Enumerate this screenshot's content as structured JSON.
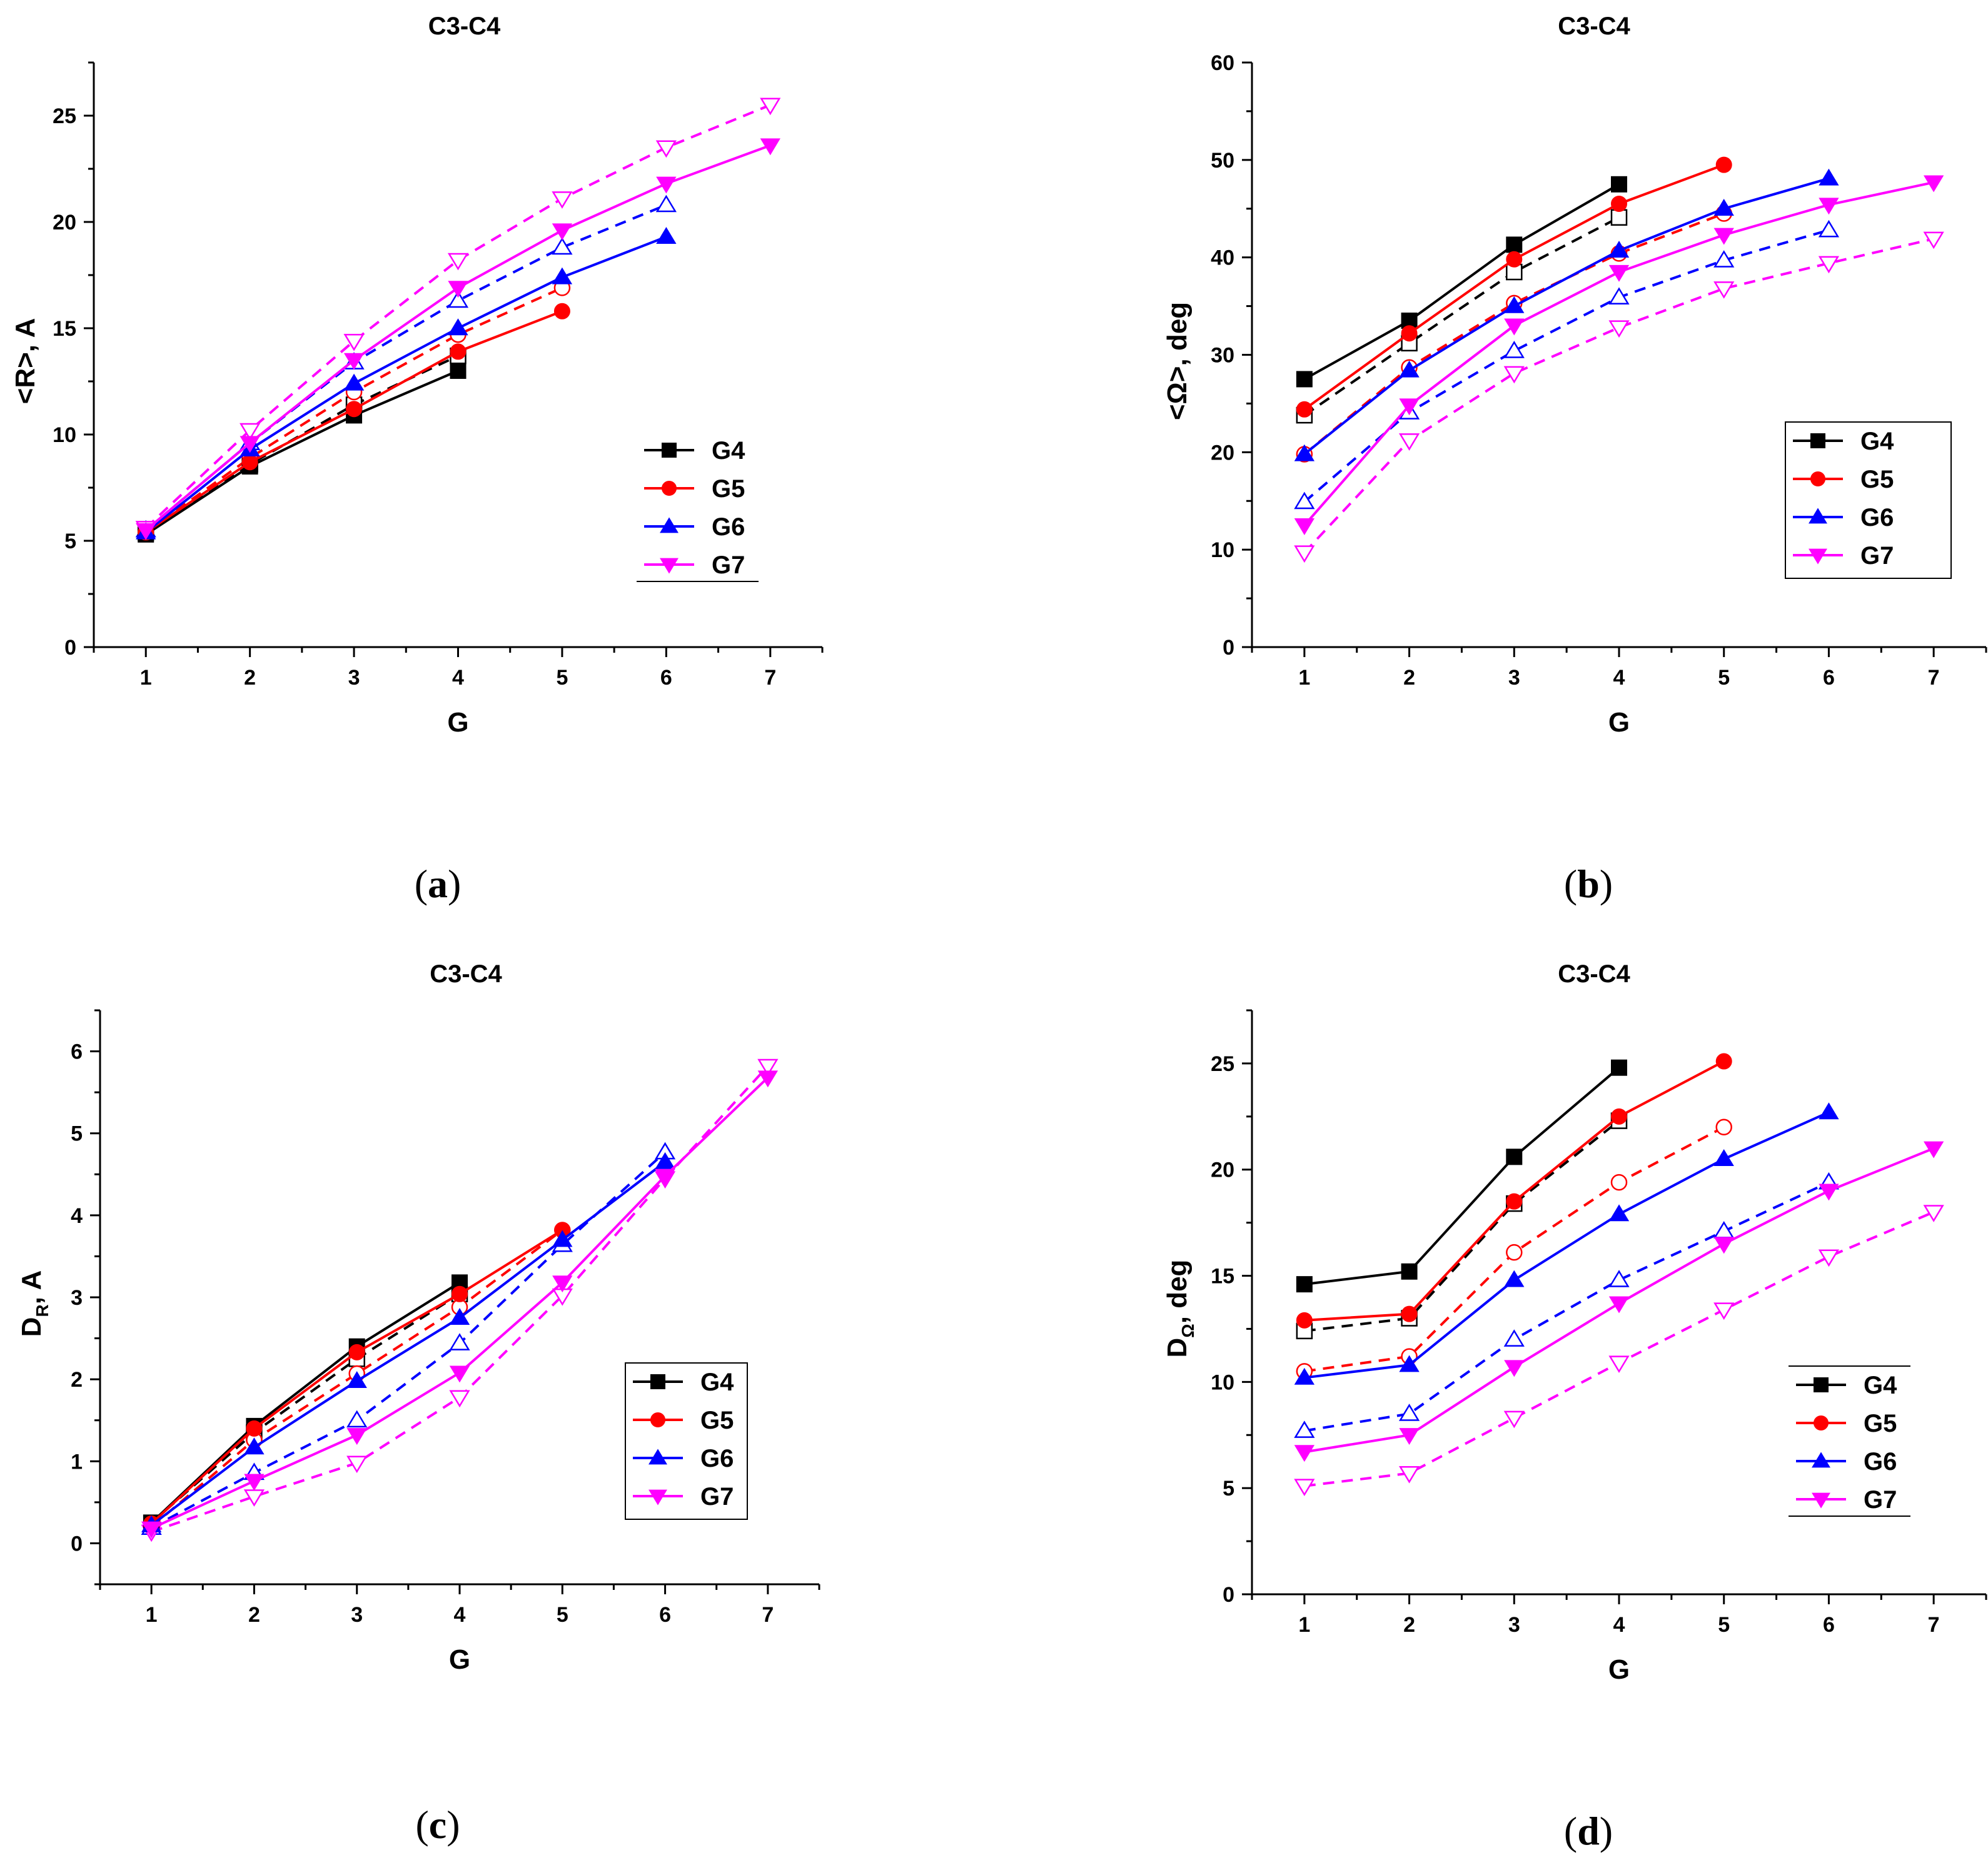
{
  "figure": {
    "panel_labels": [
      {
        "open": "(",
        "letter": "a",
        "close": ")"
      },
      {
        "open": "(",
        "letter": "b",
        "close": ")"
      },
      {
        "open": "(",
        "letter": "c",
        "close": ")"
      },
      {
        "open": "(",
        "letter": "d",
        "close": ")"
      }
    ]
  },
  "chart_data": [
    {
      "id": "a",
      "type": "line",
      "title": "C3-C4",
      "xlabel": "G",
      "ylabel": "<R>, A",
      "xlim": [
        0.5,
        7.5
      ],
      "ylim": [
        0,
        27.5
      ],
      "xticks": [
        1,
        2,
        3,
        4,
        5,
        6,
        7
      ],
      "yticks": [
        0,
        5,
        10,
        15,
        20,
        25
      ],
      "grid": false,
      "legend_position": "lower-right",
      "legend": [
        "G4",
        "G5",
        "G6",
        "G7"
      ],
      "series": [
        {
          "name": "G4",
          "color": "#000000",
          "style": "solid",
          "marker": "square",
          "filled": true,
          "x": [
            1,
            2,
            3,
            4
          ],
          "values": [
            5.3,
            8.5,
            10.9,
            13.0
          ]
        },
        {
          "name": "G5",
          "color": "#ff0000",
          "style": "solid",
          "marker": "circle",
          "filled": true,
          "x": [
            1,
            2,
            3,
            4,
            5
          ],
          "values": [
            5.4,
            8.7,
            11.2,
            13.9,
            15.8
          ]
        },
        {
          "name": "G6",
          "color": "#0000ff",
          "style": "solid",
          "marker": "triangle-up",
          "filled": true,
          "x": [
            1,
            2,
            3,
            4,
            5,
            6
          ],
          "values": [
            5.4,
            9.3,
            12.4,
            15.0,
            17.4,
            19.3
          ]
        },
        {
          "name": "G7",
          "color": "#ff00ff",
          "style": "solid",
          "marker": "triangle-down",
          "filled": true,
          "x": [
            1,
            2,
            3,
            4,
            5,
            6,
            7
          ],
          "values": [
            5.5,
            9.6,
            13.5,
            16.9,
            19.6,
            21.8,
            23.6
          ]
        },
        {
          "name": "G4 open",
          "color": "#000000",
          "style": "dashed",
          "marker": "square",
          "filled": false,
          "x": [
            1,
            2,
            3,
            4
          ],
          "values": [
            5.4,
            8.6,
            11.4,
            13.7
          ]
        },
        {
          "name": "G5 open",
          "color": "#ff0000",
          "style": "dashed",
          "marker": "circle",
          "filled": false,
          "x": [
            1,
            2,
            3,
            4,
            5
          ],
          "values": [
            5.4,
            8.9,
            12.0,
            14.7,
            16.9
          ]
        },
        {
          "name": "G6 open",
          "color": "#0000ff",
          "style": "dashed",
          "marker": "triangle-up",
          "filled": false,
          "x": [
            1,
            2,
            3,
            4,
            5,
            6
          ],
          "values": [
            5.5,
            9.6,
            13.4,
            16.3,
            18.8,
            20.8
          ]
        },
        {
          "name": "G7 open",
          "color": "#ff00ff",
          "style": "dashed",
          "marker": "triangle-down",
          "filled": false,
          "x": [
            1,
            2,
            3,
            4,
            5,
            6,
            7
          ],
          "values": [
            5.6,
            10.2,
            14.4,
            18.2,
            21.1,
            23.5,
            25.5
          ]
        }
      ]
    },
    {
      "id": "b",
      "type": "line",
      "title": "C3-C4",
      "xlabel": "G",
      "ylabel": "<Ω>, deg",
      "xlim": [
        0.5,
        7.5
      ],
      "ylim": [
        0,
        60
      ],
      "xticks": [
        1,
        2,
        3,
        4,
        5,
        6,
        7
      ],
      "yticks": [
        0,
        10,
        20,
        30,
        40,
        50,
        60
      ],
      "grid": false,
      "legend_position": "right",
      "legend": [
        "G4",
        "G5",
        "G6",
        "G7"
      ],
      "series": [
        {
          "name": "G4",
          "color": "#000000",
          "style": "solid",
          "marker": "square",
          "filled": true,
          "x": [
            1,
            2,
            3,
            4
          ],
          "values": [
            27.5,
            33.5,
            41.3,
            47.5
          ]
        },
        {
          "name": "G5",
          "color": "#ff0000",
          "style": "solid",
          "marker": "circle",
          "filled": true,
          "x": [
            1,
            2,
            3,
            4,
            5
          ],
          "values": [
            24.4,
            32.2,
            39.8,
            45.5,
            49.5
          ]
        },
        {
          "name": "G6",
          "color": "#0000ff",
          "style": "solid",
          "marker": "triangle-up",
          "filled": true,
          "x": [
            1,
            2,
            3,
            4,
            5,
            6
          ],
          "values": [
            19.8,
            28.4,
            35.0,
            40.7,
            45.0,
            48.1
          ]
        },
        {
          "name": "G7",
          "color": "#ff00ff",
          "style": "solid",
          "marker": "triangle-down",
          "filled": true,
          "x": [
            1,
            2,
            3,
            4,
            5,
            6,
            7
          ],
          "values": [
            12.5,
            24.8,
            33.0,
            38.5,
            42.3,
            45.4,
            47.7
          ]
        },
        {
          "name": "G4 open",
          "color": "#000000",
          "style": "dashed",
          "marker": "square",
          "filled": false,
          "x": [
            1,
            2,
            3,
            4
          ],
          "values": [
            23.8,
            31.2,
            38.5,
            44.1
          ]
        },
        {
          "name": "G5 open",
          "color": "#ff0000",
          "style": "dashed",
          "marker": "circle",
          "filled": false,
          "x": [
            1,
            2,
            3,
            4,
            5
          ],
          "values": [
            19.8,
            28.7,
            35.3,
            40.4,
            44.5
          ]
        },
        {
          "name": "G6 open",
          "color": "#0000ff",
          "style": "dashed",
          "marker": "triangle-up",
          "filled": false,
          "x": [
            1,
            2,
            3,
            4,
            5,
            6
          ],
          "values": [
            14.9,
            24.1,
            30.4,
            35.9,
            39.7,
            42.8
          ]
        },
        {
          "name": "G7 open",
          "color": "#ff00ff",
          "style": "dashed",
          "marker": "triangle-down",
          "filled": false,
          "x": [
            1,
            2,
            3,
            4,
            5,
            6,
            7
          ],
          "values": [
            9.7,
            21.2,
            28.1,
            32.8,
            36.8,
            39.4,
            41.9
          ]
        }
      ]
    },
    {
      "id": "c",
      "type": "line",
      "title": "C3-C4",
      "xlabel": "G",
      "ylabel": "D",
      "ylabel_subscript": "R",
      "ylabel_suffix": ", A",
      "xlim": [
        0.5,
        7.5
      ],
      "ylim": [
        -0.5,
        6.5
      ],
      "xticks": [
        1,
        2,
        3,
        4,
        5,
        6,
        7
      ],
      "yticks": [
        0,
        1,
        2,
        3,
        4,
        5,
        6
      ],
      "grid": false,
      "legend_position": "right",
      "legend": [
        "G4",
        "G5",
        "G6",
        "G7"
      ],
      "series": [
        {
          "name": "G4",
          "color": "#000000",
          "style": "solid",
          "marker": "square",
          "filled": true,
          "x": [
            1,
            2,
            3,
            4
          ],
          "values": [
            0.25,
            1.43,
            2.4,
            3.18
          ]
        },
        {
          "name": "G5",
          "color": "#ff0000",
          "style": "solid",
          "marker": "circle",
          "filled": true,
          "x": [
            1,
            2,
            3,
            4,
            5
          ],
          "values": [
            0.24,
            1.4,
            2.33,
            3.04,
            3.82
          ]
        },
        {
          "name": "G6",
          "color": "#0000ff",
          "style": "solid",
          "marker": "triangle-up",
          "filled": true,
          "x": [
            1,
            2,
            3,
            4,
            5,
            6
          ],
          "values": [
            0.22,
            1.17,
            1.98,
            2.75,
            3.7,
            4.65
          ]
        },
        {
          "name": "G7",
          "color": "#ff00ff",
          "style": "solid",
          "marker": "triangle-down",
          "filled": true,
          "x": [
            1,
            2,
            3,
            4,
            5,
            6,
            7
          ],
          "values": [
            0.18,
            0.76,
            1.32,
            2.08,
            3.18,
            4.48,
            5.68
          ]
        },
        {
          "name": "G4 open",
          "color": "#000000",
          "style": "dashed",
          "marker": "square",
          "filled": false,
          "x": [
            1,
            2,
            3,
            4
          ],
          "values": [
            0.25,
            1.35,
            2.25,
            3.04
          ]
        },
        {
          "name": "G5 open",
          "color": "#ff0000",
          "style": "dashed",
          "marker": "circle",
          "filled": false,
          "x": [
            1,
            2,
            3,
            4,
            5
          ],
          "values": [
            0.2,
            1.26,
            2.07,
            2.88,
            3.82
          ]
        },
        {
          "name": "G6 open",
          "color": "#0000ff",
          "style": "dashed",
          "marker": "triangle-up",
          "filled": false,
          "x": [
            1,
            2,
            3,
            4,
            5,
            6
          ],
          "values": [
            0.19,
            0.86,
            1.5,
            2.44,
            3.64,
            4.77
          ]
        },
        {
          "name": "G7 open",
          "color": "#ff00ff",
          "style": "dashed",
          "marker": "triangle-down",
          "filled": false,
          "x": [
            1,
            2,
            3,
            4,
            5,
            6,
            7
          ],
          "values": [
            0.14,
            0.57,
            0.98,
            1.78,
            3.02,
            4.45,
            5.82
          ]
        }
      ]
    },
    {
      "id": "d",
      "type": "line",
      "title": "C3-C4",
      "xlabel": "G",
      "ylabel": "D",
      "ylabel_subscript": "Ω",
      "ylabel_suffix": ", deg",
      "xlim": [
        0.5,
        7.5
      ],
      "ylim": [
        0,
        27.5
      ],
      "xticks": [
        1,
        2,
        3,
        4,
        5,
        6,
        7
      ],
      "yticks": [
        0,
        5,
        10,
        15,
        20,
        25
      ],
      "grid": false,
      "legend_position": "lower-right",
      "legend": [
        "G4",
        "G5",
        "G6",
        "G7"
      ],
      "series": [
        {
          "name": "G4",
          "color": "#000000",
          "style": "solid",
          "marker": "square",
          "filled": true,
          "x": [
            1,
            2,
            3,
            4
          ],
          "values": [
            14.6,
            15.2,
            20.6,
            24.8
          ]
        },
        {
          "name": "G5",
          "color": "#ff0000",
          "style": "solid",
          "marker": "circle",
          "filled": true,
          "x": [
            1,
            2,
            3,
            4,
            5
          ],
          "values": [
            12.9,
            13.2,
            18.5,
            22.5,
            25.1
          ]
        },
        {
          "name": "G6",
          "color": "#0000ff",
          "style": "solid",
          "marker": "triangle-up",
          "filled": true,
          "x": [
            1,
            2,
            3,
            4,
            5,
            6
          ],
          "values": [
            10.2,
            10.8,
            14.8,
            17.9,
            20.5,
            22.7
          ]
        },
        {
          "name": "G7",
          "color": "#ff00ff",
          "style": "solid",
          "marker": "triangle-down",
          "filled": true,
          "x": [
            1,
            2,
            3,
            4,
            5,
            6,
            7
          ],
          "values": [
            6.7,
            7.5,
            10.7,
            13.7,
            16.5,
            19.0,
            21.0
          ]
        },
        {
          "name": "G4 open",
          "color": "#000000",
          "style": "dashed",
          "marker": "square",
          "filled": false,
          "x": [
            1,
            2,
            3,
            4
          ],
          "values": [
            12.4,
            13.0,
            18.4,
            22.3
          ]
        },
        {
          "name": "G5 open",
          "color": "#ff0000",
          "style": "dashed",
          "marker": "circle",
          "filled": false,
          "x": [
            1,
            2,
            3,
            4,
            5
          ],
          "values": [
            10.5,
            11.2,
            16.1,
            19.4,
            22.0
          ]
        },
        {
          "name": "G6 open",
          "color": "#0000ff",
          "style": "dashed",
          "marker": "triangle-up",
          "filled": false,
          "x": [
            1,
            2,
            3,
            4,
            5,
            6
          ],
          "values": [
            7.7,
            8.5,
            12.0,
            14.8,
            17.1,
            19.4
          ]
        },
        {
          "name": "G7 open",
          "color": "#ff00ff",
          "style": "dashed",
          "marker": "triangle-down",
          "filled": false,
          "x": [
            1,
            2,
            3,
            4,
            5,
            6,
            7
          ],
          "values": [
            5.1,
            5.7,
            8.3,
            10.9,
            13.4,
            15.9,
            18.0
          ]
        }
      ]
    }
  ]
}
